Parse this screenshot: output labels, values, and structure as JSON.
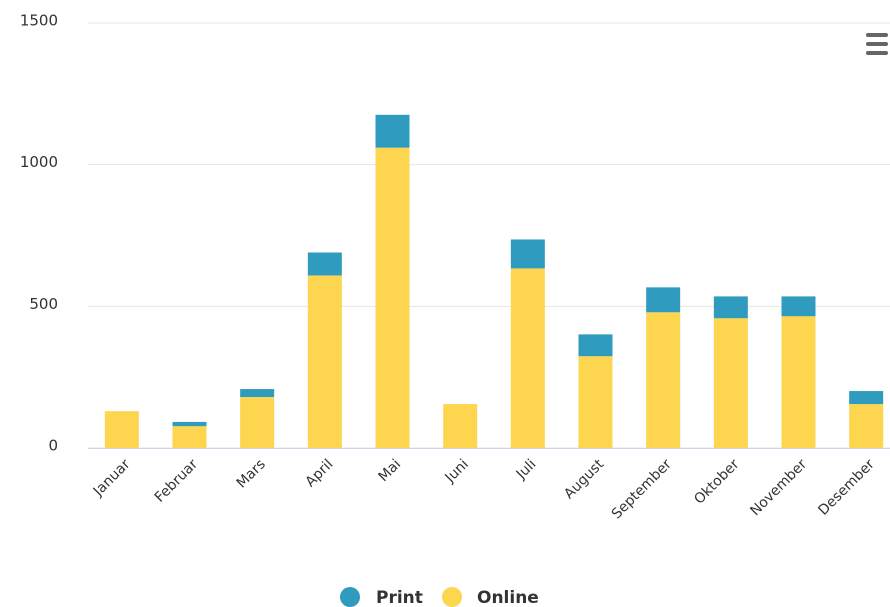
{
  "chart_data": {
    "type": "stacked_bar",
    "categories": [
      "Januar",
      "Februar",
      "Mars",
      "April",
      "Mai",
      "Juni",
      "Juli",
      "August",
      "September",
      "Oktober",
      "November",
      "Desember"
    ],
    "series": [
      {
        "name": "Print",
        "color": "#2e9bbf",
        "values": [
          0,
          15,
          28,
          81,
          116,
          0,
          102,
          77,
          88,
          77,
          70,
          46
        ]
      },
      {
        "name": "Online",
        "color": "#fdd54f",
        "values": [
          130,
          77,
          180,
          609,
          1060,
          155,
          634,
          324,
          479,
          458,
          465,
          155
        ]
      }
    ],
    "ylim": [
      0,
      1500
    ],
    "yticks": [
      0,
      500,
      1000,
      1500
    ],
    "grid": true,
    "legend": "bottom"
  }
}
